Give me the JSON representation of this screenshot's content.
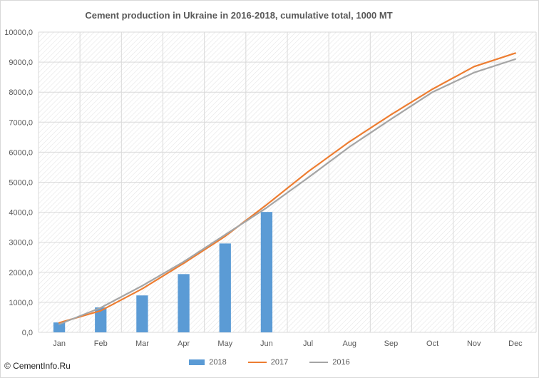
{
  "chart_data": {
    "type": "bar",
    "title": "Cement production in Ukraine in 2016-2018, cumulative total, 1000 MT",
    "xlabel": "",
    "ylabel": "",
    "ylim": [
      0,
      10000
    ],
    "ytick_step": 1000,
    "ytick_labels": [
      "0,0",
      "1000,0",
      "2000,0",
      "3000,0",
      "4000,0",
      "5000,0",
      "6000,0",
      "7000,0",
      "8000,0",
      "9000,0",
      "10000,0"
    ],
    "categories": [
      "Jan",
      "Feb",
      "Mar",
      "Apr",
      "May",
      "Jun",
      "Jul",
      "Aug",
      "Sep",
      "Oct",
      "Nov",
      "Dec"
    ],
    "grid": true,
    "legend_position": "bottom",
    "series": [
      {
        "name": "2018",
        "kind": "bar",
        "color": "#5b9bd5",
        "values": [
          330,
          830,
          1230,
          1940,
          2960,
          4010,
          null,
          null,
          null,
          null,
          null,
          null
        ]
      },
      {
        "name": "2017",
        "kind": "line",
        "color": "#ed7d31",
        "values": [
          320,
          720,
          1450,
          2300,
          3200,
          4250,
          5350,
          6350,
          7250,
          8100,
          8850,
          9300
        ]
      },
      {
        "name": "2016",
        "kind": "line",
        "color": "#a5a5a5",
        "values": [
          270,
          820,
          1550,
          2350,
          3250,
          4150,
          5150,
          6180,
          7100,
          8000,
          8650,
          9100
        ]
      }
    ]
  },
  "copyright": "© CementInfo.Ru"
}
